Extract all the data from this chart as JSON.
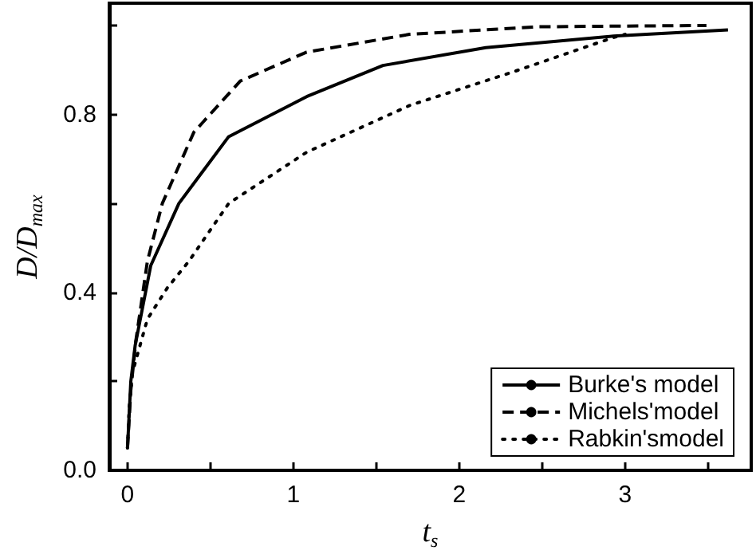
{
  "chart_data": {
    "type": "line",
    "xlabel": "t$_{s}$",
    "ylabel": "D/D$_{max}$",
    "xlim": [
      -0.11,
      3.76
    ],
    "ylim": [
      0,
      1.05
    ],
    "xticks": [
      0,
      {
        "value": 0.5,
        "label": null
      },
      1,
      {
        "value": 1.5,
        "label": null
      },
      2,
      {
        "value": 2.5,
        "label": null
      },
      3,
      {
        "value": 3.5,
        "label": null
      }
    ],
    "yticks": [
      {
        "value": 0,
        "label": "0.0"
      },
      {
        "value": 0.2,
        "label": null
      },
      {
        "value": 0.4,
        "label": "0.4"
      },
      {
        "value": 0.6,
        "label": null
      },
      {
        "value": 0.8,
        "label": "0.8"
      },
      {
        "value": 1.0,
        "label": null
      }
    ],
    "series": [
      {
        "name": "Burke's model",
        "color": "#000000",
        "line_style": "solid",
        "x": [
          0,
          0.02,
          0.046,
          0.14,
          0.31,
          0.61,
          1.08,
          1.54,
          2.16,
          2.93,
          3.62
        ],
        "values": [
          0.05,
          0.2,
          0.28,
          0.46,
          0.6,
          0.75,
          0.84,
          0.91,
          0.95,
          0.976,
          0.99
        ]
      },
      {
        "name": "Michels'model",
        "color": "#000000",
        "line_style": "dashed",
        "x": [
          0,
          0.02,
          0.05,
          0.12,
          0.21,
          0.4,
          0.68,
          1.08,
          1.7,
          2.47,
          3.49
        ],
        "values": [
          0.05,
          0.18,
          0.29,
          0.47,
          0.6,
          0.76,
          0.875,
          0.94,
          0.98,
          0.997,
          1.0
        ]
      },
      {
        "name": "Rabkin'smodel",
        "color": "#000000",
        "line_style": "dotted",
        "x": [
          0,
          0.01,
          0.03,
          0.12,
          0.24,
          0.37,
          0.61,
          1.08,
          1.7,
          2.32,
          2.93,
          3.0
        ],
        "values": [
          0.05,
          0.14,
          0.22,
          0.34,
          0.41,
          0.47,
          0.6,
          0.715,
          0.82,
          0.895,
          0.973,
          0.98
        ]
      }
    ],
    "legend": "bottom right",
    "marker": "none",
    "grid": false
  }
}
